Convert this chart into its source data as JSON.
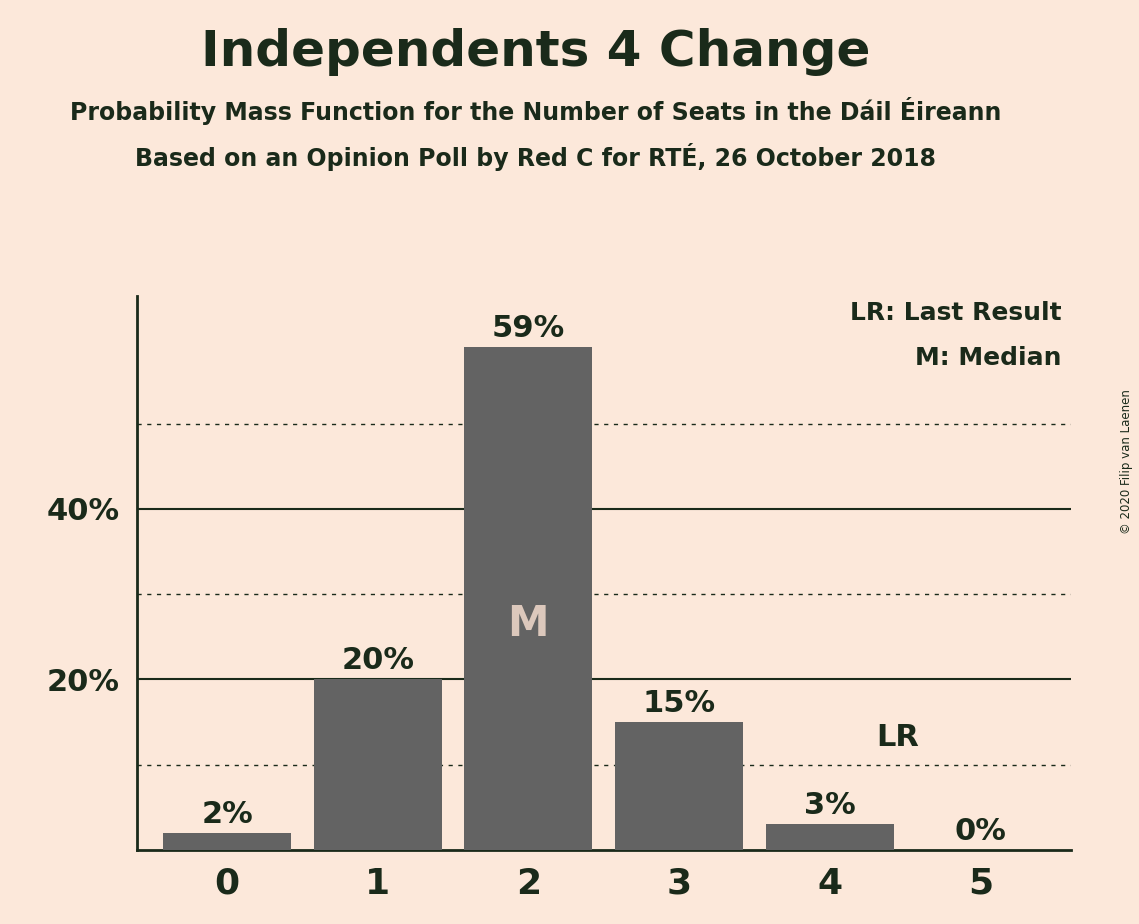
{
  "title": "Independents 4 Change",
  "subtitle1": "Probability Mass Function for the Number of Seats in the Dáil Éireann",
  "subtitle2": "Based on an Opinion Poll by Red C for RTÉ, 26 October 2018",
  "copyright": "© 2020 Filip van Laenen",
  "categories": [
    0,
    1,
    2,
    3,
    4,
    5
  ],
  "values": [
    0.02,
    0.2,
    0.59,
    0.15,
    0.03,
    0.0
  ],
  "bar_color": "#636363",
  "background_color": "#fce8da",
  "text_color": "#1a2a1a",
  "bar_labels": [
    "2%",
    "20%",
    "59%",
    "15%",
    "3%",
    "0%"
  ],
  "median_bar": 2,
  "median_label": "M",
  "lr_bar": 4,
  "lr_label": "LR",
  "legend_lr": "LR: Last Result",
  "legend_m": "M: Median",
  "ytick_positions": [
    0.2,
    0.4
  ],
  "ytick_labels": [
    "20%",
    "40%"
  ],
  "ylim": [
    0,
    0.65
  ],
  "dotted_grid_values": [
    0.1,
    0.3,
    0.5
  ],
  "solid_grid_values": [
    0.2,
    0.4
  ]
}
